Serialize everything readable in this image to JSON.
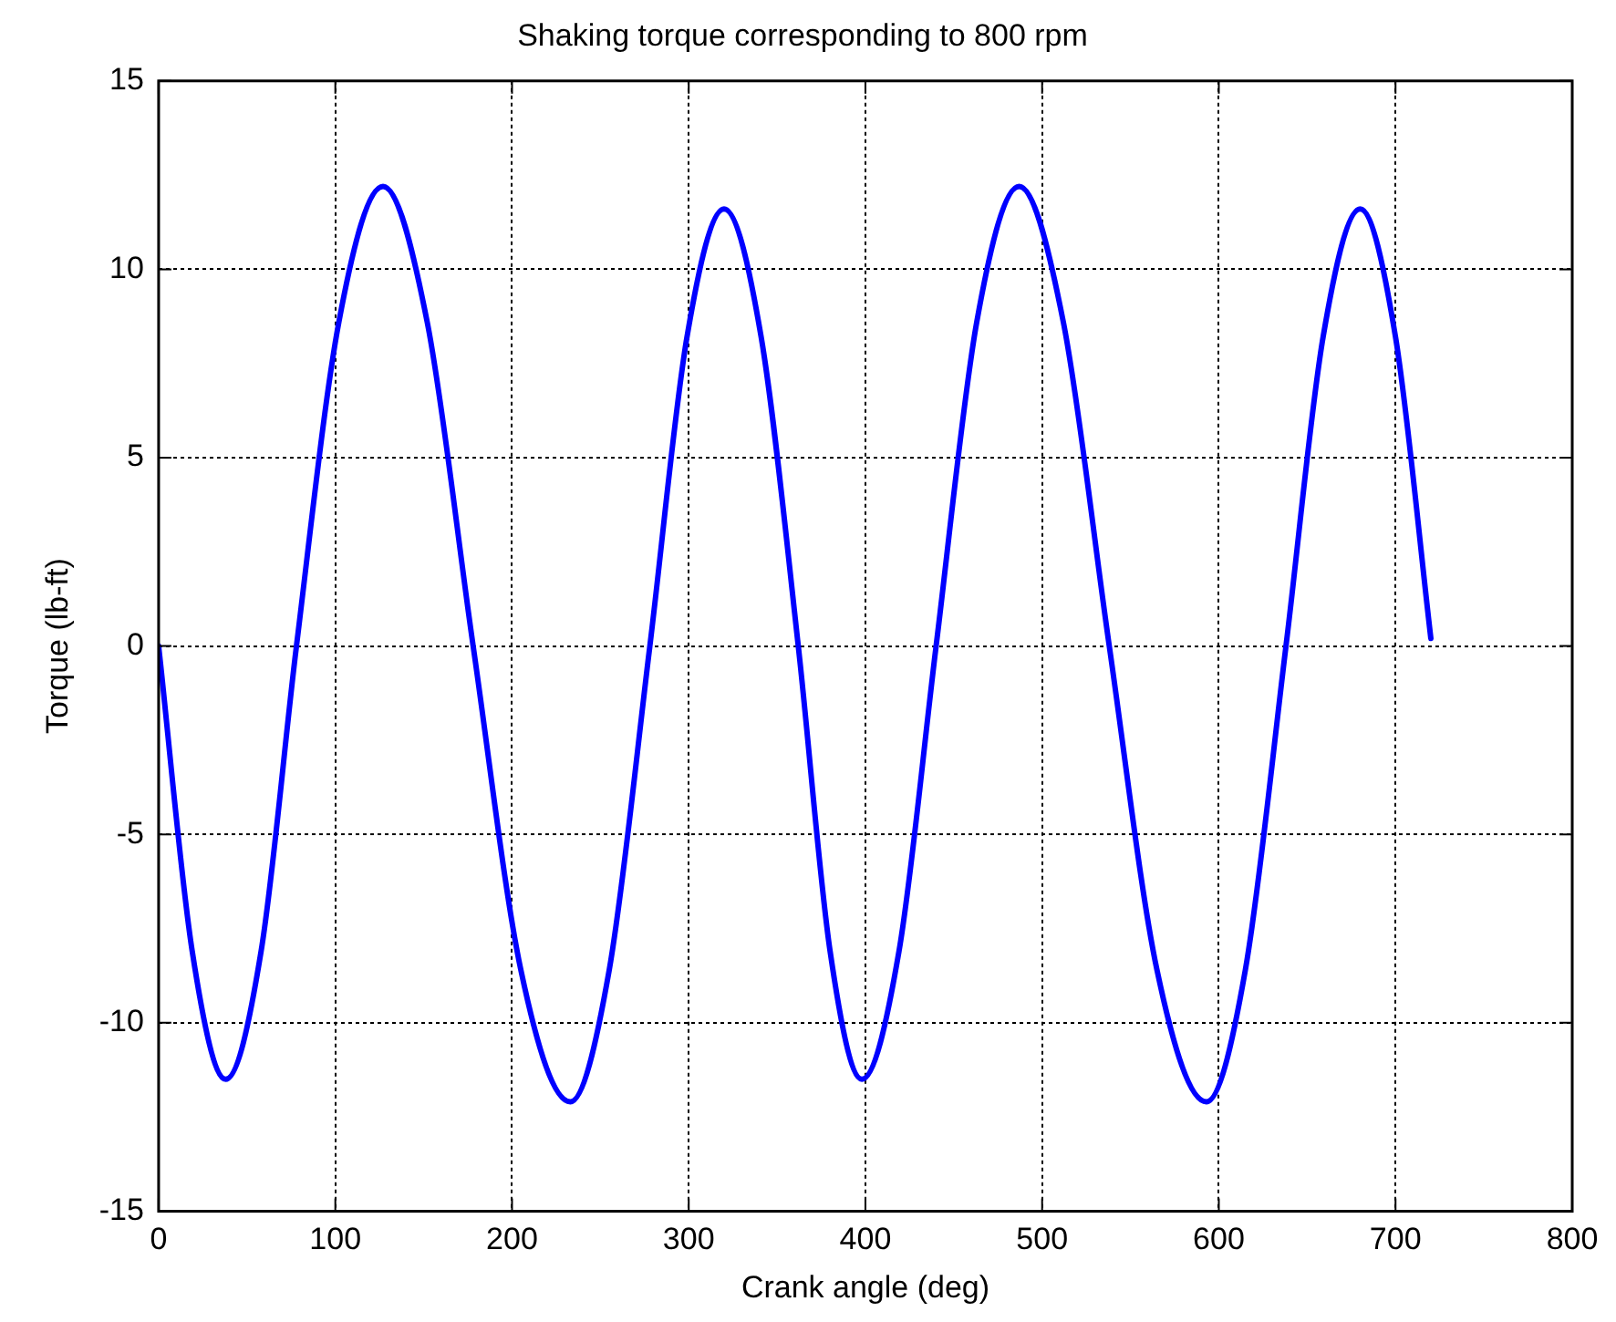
{
  "chart_data": {
    "type": "line",
    "title": "Shaking torque corresponding to 800 rpm",
    "xlabel": "Crank angle (deg)",
    "ylabel": "Torque (lb-ft)",
    "x": [
      0,
      19,
      38,
      58,
      78,
      102,
      127,
      152,
      178,
      205,
      233,
      255,
      278,
      299,
      320,
      341,
      362,
      380,
      398,
      419,
      440,
      463,
      487,
      512,
      538,
      565,
      593,
      615,
      638,
      659,
      680,
      700,
      720
    ],
    "series": [
      {
        "color": "#0000ff",
        "values": [
          0,
          -8.1,
          -11.5,
          -8.1,
          0,
          8.6,
          12.2,
          8.6,
          0,
          -8.6,
          -12.1,
          -8.6,
          0,
          8.2,
          11.6,
          8.2,
          0,
          -8.1,
          -11.5,
          -8.1,
          0,
          8.6,
          12.2,
          8.6,
          0,
          -8.6,
          -12.1,
          -8.6,
          0,
          8.2,
          11.6,
          8.2,
          0.2
        ]
      }
    ],
    "xlim": [
      0,
      800
    ],
    "xticks": [
      0,
      100,
      200,
      300,
      400,
      500,
      600,
      700,
      800
    ],
    "ylim": [
      -15,
      15
    ],
    "yticks": [
      -15,
      -10,
      -5,
      0,
      5,
      10,
      15
    ],
    "grid": true,
    "legend": false,
    "marker": "none",
    "line_style": "solid"
  }
}
